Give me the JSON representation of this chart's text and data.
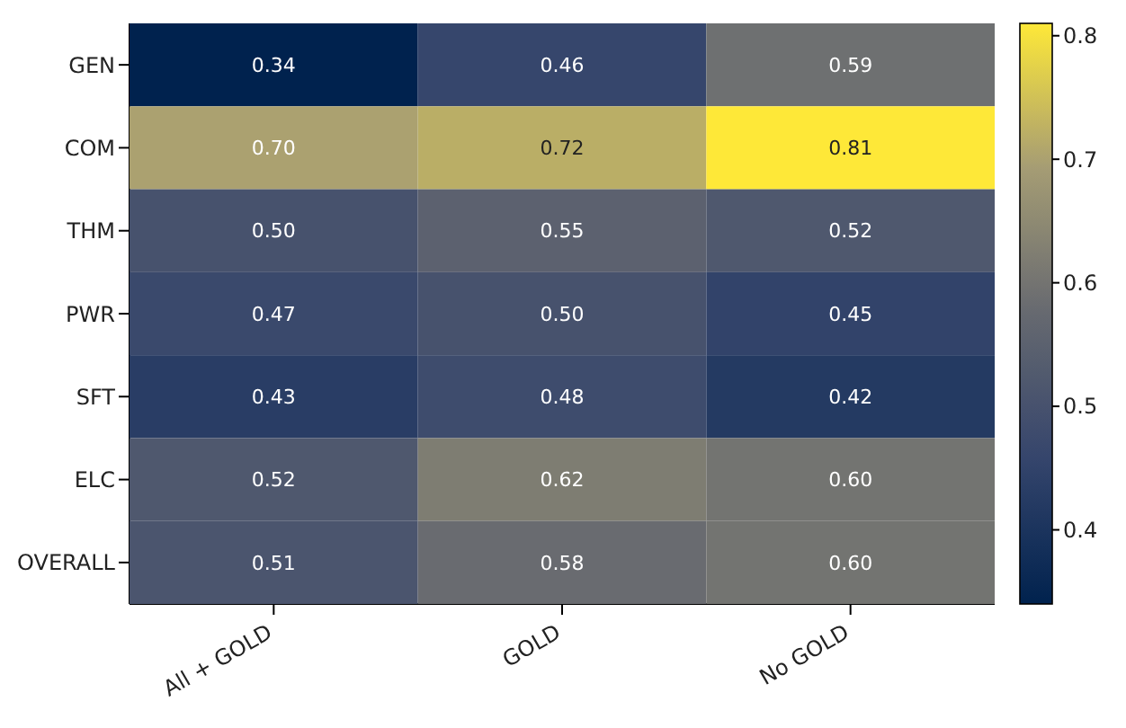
{
  "chart_data": {
    "type": "heatmap",
    "categories": [
      "All + GOLD",
      "GOLD",
      "No GOLD"
    ],
    "y_categories": [
      "GEN",
      "COM",
      "THM",
      "PWR",
      "SFT",
      "ELC",
      "OVERALL"
    ],
    "cells": [
      [
        0.34,
        0.46,
        0.59
      ],
      [
        0.7,
        0.72,
        0.81
      ],
      [
        0.5,
        0.55,
        0.52
      ],
      [
        0.47,
        0.5,
        0.45
      ],
      [
        0.43,
        0.48,
        0.42
      ],
      [
        0.52,
        0.62,
        0.6
      ],
      [
        0.51,
        0.58,
        0.6
      ]
    ],
    "cell_labels": [
      [
        "0.34",
        "0.46",
        "0.59"
      ],
      [
        "0.70",
        "0.72",
        "0.81"
      ],
      [
        "0.50",
        "0.55",
        "0.52"
      ],
      [
        "0.47",
        "0.50",
        "0.45"
      ],
      [
        "0.43",
        "0.48",
        "0.42"
      ],
      [
        "0.52",
        "0.62",
        "0.60"
      ],
      [
        "0.51",
        "0.58",
        "0.60"
      ]
    ],
    "clim": [
      0.34,
      0.81
    ],
    "cticks": [
      0.4,
      0.5,
      0.6,
      0.7,
      0.8
    ]
  }
}
